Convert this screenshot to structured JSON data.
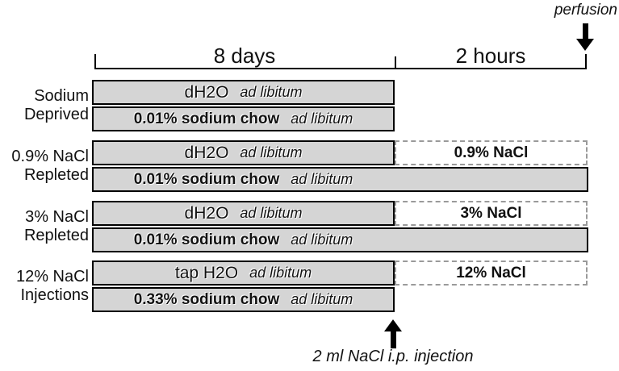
{
  "timeline": {
    "phase1": "8 days",
    "phase2": "2 hours",
    "perfusion": "perfusion"
  },
  "injection_label": "2 ml NaCl i.p. injection",
  "groups": [
    {
      "label_line1": "Sodium",
      "label_line2": "Deprived",
      "water": {
        "text": "dH2O",
        "suffix": "ad libitum"
      },
      "chow": {
        "text": "0.01% sodium chow",
        "suffix": "ad libitum"
      }
    },
    {
      "label_line1": "0.9% NaCl",
      "label_line2": "Repleted",
      "water": {
        "text": "dH2O",
        "suffix": "ad libitum"
      },
      "chow": {
        "text": "0.01% sodium chow",
        "suffix": "ad libitum"
      },
      "treatment": "0.9% NaCl"
    },
    {
      "label_line1": "3% NaCl",
      "label_line2": "Repleted",
      "water": {
        "text": "dH2O",
        "suffix": "ad libitum"
      },
      "chow": {
        "text": "0.01% sodium chow",
        "suffix": "ad libitum"
      },
      "treatment": "3% NaCl"
    },
    {
      "label_line1": "12% NaCl",
      "label_line2": "Injections",
      "water": {
        "text": "tap H2O",
        "suffix": "ad libitum"
      },
      "chow": {
        "text": "0.33% sodium chow",
        "suffix": "ad libitum"
      },
      "treatment": "12% NaCl"
    }
  ],
  "colors": {
    "bar_fill": "#d5d5d5",
    "bar_border": "#000000",
    "dashed_border": "#9a9a9a",
    "background": "#ffffff"
  }
}
